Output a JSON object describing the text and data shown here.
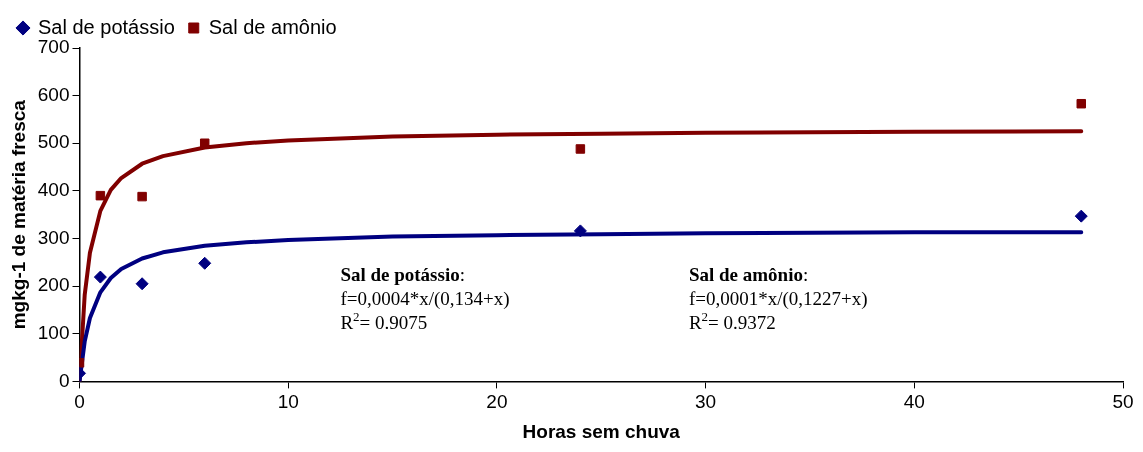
{
  "chart_data": {
    "type": "scatter",
    "xlabel": "Horas sem chuva",
    "ylabel": "mgkg-1 de matéria fresca",
    "xlim": [
      0,
      50
    ],
    "xticks": [
      0,
      10,
      20,
      30,
      40,
      50
    ],
    "ylim": [
      0,
      700
    ],
    "yticks": [
      0,
      100,
      200,
      300,
      400,
      500,
      600,
      700
    ],
    "grid": false,
    "legend": "top left",
    "series": [
      {
        "name": "Sal de potássio",
        "type": "scatter",
        "marker": "diamond",
        "color": "#000080",
        "x": [
          0,
          1,
          3,
          6,
          24,
          48
        ],
        "values": [
          17,
          219,
          205,
          248,
          316,
          347
        ]
      },
      {
        "name": "Sal de amônio",
        "type": "scatter",
        "marker": "square",
        "color": "#800000",
        "x": [
          0,
          1,
          3,
          6,
          24,
          48
        ],
        "values": [
          39,
          390,
          388,
          500,
          488,
          583
        ]
      },
      {
        "type": "line",
        "marker": "none",
        "color": "#000080",
        "x": [
          0,
          0.25,
          0.5,
          1,
          1.5,
          2,
          3,
          4,
          6,
          8,
          10,
          15,
          20,
          25,
          30,
          40,
          48
        ],
        "values": [
          0,
          84,
          133,
          187,
          217,
          236,
          258,
          271,
          285,
          292,
          297,
          304,
          307,
          309,
          311,
          313,
          313
        ]
      },
      {
        "type": "line",
        "marker": "none",
        "color": "#800000",
        "x": [
          0,
          0.25,
          0.5,
          1,
          1.5,
          2,
          3,
          4,
          6,
          8,
          10,
          15,
          20,
          25,
          30,
          40,
          48
        ],
        "values": [
          0,
          182,
          270,
          358,
          402,
          427,
          457,
          473,
          491,
          500,
          506,
          514,
          518,
          520,
          522,
          524,
          525
        ]
      }
    ],
    "annotations": [
      "Sal de potássio:",
      "f=0,0004*x/(0,134+x)",
      "R$^{2}$= 0.9075",
      "Sal de amônio:",
      "f=0,0001*x/(0,1227+x)",
      "R$^{2}$= 0.9372"
    ]
  }
}
